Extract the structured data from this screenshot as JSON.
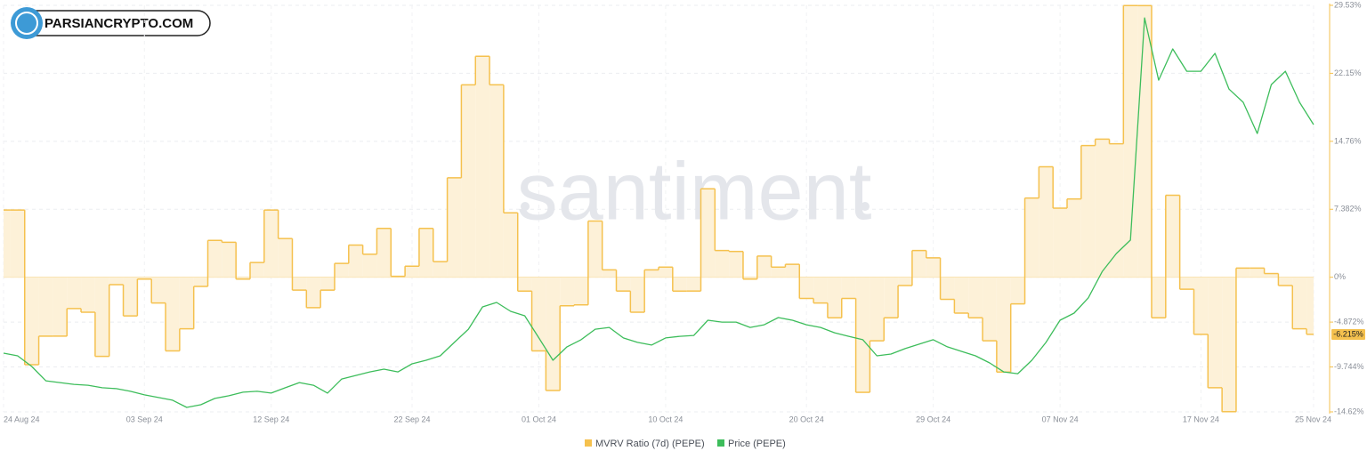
{
  "logo": "PARSIANCRYPTO.COM",
  "chart_data": {
    "type": "step-area-line",
    "watermark": "santiment",
    "categories": [
      "24 Aug 24",
      null,
      null,
      null,
      null,
      null,
      null,
      null,
      null,
      null,
      "03 Sep 24",
      null,
      null,
      null,
      null,
      null,
      null,
      null,
      null,
      "12 Sep 24",
      null,
      null,
      null,
      null,
      null,
      null,
      null,
      null,
      null,
      "22 Sep 24",
      null,
      null,
      null,
      null,
      null,
      null,
      null,
      null,
      "01 Oct 24",
      null,
      null,
      null,
      null,
      null,
      null,
      null,
      null,
      "10 Oct 24",
      null,
      null,
      null,
      null,
      null,
      null,
      null,
      null,
      null,
      "20 Oct 24",
      null,
      null,
      null,
      null,
      null,
      null,
      null,
      null,
      "29 Oct 24",
      null,
      null,
      null,
      null,
      null,
      null,
      null,
      null,
      "07 Nov 24",
      null,
      null,
      null,
      null,
      null,
      null,
      null,
      null,
      null,
      "17 Nov 24",
      null,
      null,
      null,
      null,
      null,
      null,
      null,
      "25 Nov 24"
    ],
    "series": [
      {
        "name": "MVRV Ratio (7d) (PEPE)",
        "color": "#f5c14e",
        "fill": "#fdf1d8",
        "values": [
          7.3,
          7.3,
          -9.5,
          -6.4,
          -6.4,
          -3.4,
          -3.8,
          -8.6,
          -0.8,
          -4.2,
          -0.2,
          -2.8,
          -8.0,
          -5.6,
          -1.0,
          4.0,
          3.8,
          -0.2,
          1.6,
          7.3,
          4.2,
          -1.4,
          -3.3,
          -1.4,
          1.5,
          3.5,
          2.5,
          5.3,
          0.1,
          1.2,
          5.3,
          1.7,
          10.8,
          20.9,
          24.0,
          20.9,
          7.0,
          -1.5,
          -8.0,
          -12.3,
          -3.1,
          -3.0,
          6.1,
          0.8,
          -1.5,
          -3.8,
          0.8,
          1.1,
          -1.5,
          -1.5,
          9.6,
          2.9,
          2.8,
          -0.2,
          2.3,
          1.1,
          1.4,
          -2.3,
          -2.8,
          -4.4,
          -2.3,
          -12.5,
          -6.9,
          -4.4,
          -0.9,
          2.9,
          2.1,
          -2.4,
          -3.9,
          -4.4,
          -6.9,
          -10.3,
          -2.9,
          8.6,
          12.0,
          7.5,
          8.5,
          14.3,
          15.0,
          14.5,
          29.5,
          29.5,
          -4.4,
          8.9,
          -1.3,
          -6.2,
          -12.0,
          -14.6,
          1.0,
          1.0,
          0.4,
          -0.9,
          -5.6,
          -6.2
        ]
      },
      {
        "name": "Price (PEPE)",
        "color": "#3dbd5b",
        "axis": "y2",
        "values": [
          9.13e-06,
          9.01e-06,
          8.53e-06,
          7.89e-06,
          7.81e-06,
          7.73e-06,
          7.69e-06,
          7.58e-06,
          7.54e-06,
          7.42e-06,
          7.26e-06,
          7.14e-06,
          7.02e-06,
          6.7e-06,
          6.82e-06,
          7.1e-06,
          7.22e-06,
          7.38e-06,
          7.42e-06,
          7.34e-06,
          7.58e-06,
          7.81e-06,
          7.69e-06,
          7.34e-06,
          7.97e-06,
          8.13e-06,
          8.29e-06,
          8.41e-06,
          8.29e-06,
          8.65e-06,
          8.81e-06,
          9.01e-06,
          9.61e-06,
          1.02e-05,
          1.12e-05,
          1.14e-05,
          1.1e-05,
          1.08e-05,
          9.81e-06,
          8.81e-06,
          9.41e-06,
          9.73e-06,
          1.02e-05,
          1.028e-05,
          9.81e-06,
          9.61e-06,
          9.49e-06,
          9.81e-06,
          9.88e-06,
          9.92e-06,
          1.06e-05,
          1.052e-05,
          1.052e-05,
          1.028e-05,
          1.04e-05,
          1.072e-05,
          1.06e-05,
          1.04e-05,
          1.028e-05,
          1.004e-05,
          9.88e-06,
          9.73e-06,
          9.01e-06,
          9.09e-06,
          9.33e-06,
          9.53e-06,
          9.73e-06,
          9.41e-06,
          9.21e-06,
          9.01e-06,
          8.69e-06,
          8.29e-06,
          8.21e-06,
          8.81e-06,
          9.61e-06,
          1.06e-05,
          1.092e-05,
          1.16e-05,
          1.279e-05,
          1.359e-05,
          1.419e-05,
          2.414e-05,
          2.135e-05,
          2.275e-05,
          2.175e-05,
          2.175e-05,
          2.255e-05,
          2.095e-05,
          2.036e-05,
          1.896e-05,
          2.115e-05,
          2.175e-05,
          2.036e-05,
          1.936e-05
        ]
      }
    ],
    "ylim": [
      -14.62,
      29.53
    ],
    "yticks": [
      {
        "value": 29.53,
        "label": "29.53%"
      },
      {
        "value": 22.15,
        "label": "22.15%"
      },
      {
        "value": 14.76,
        "label": "14.76%"
      },
      {
        "value": 7.382,
        "label": "7.382%"
      },
      {
        "value": 0,
        "label": "0%"
      },
      {
        "value": -4.872,
        "label": "-4.872%"
      },
      {
        "value": -9.744,
        "label": "-9.744%"
      },
      {
        "value": -14.62,
        "label": "-14.62%"
      }
    ],
    "y2lim": [
      6.5e-06,
      2.47e-05
    ],
    "last_value": {
      "value": -6.215,
      "label": "-6.215%"
    },
    "grid": true
  }
}
